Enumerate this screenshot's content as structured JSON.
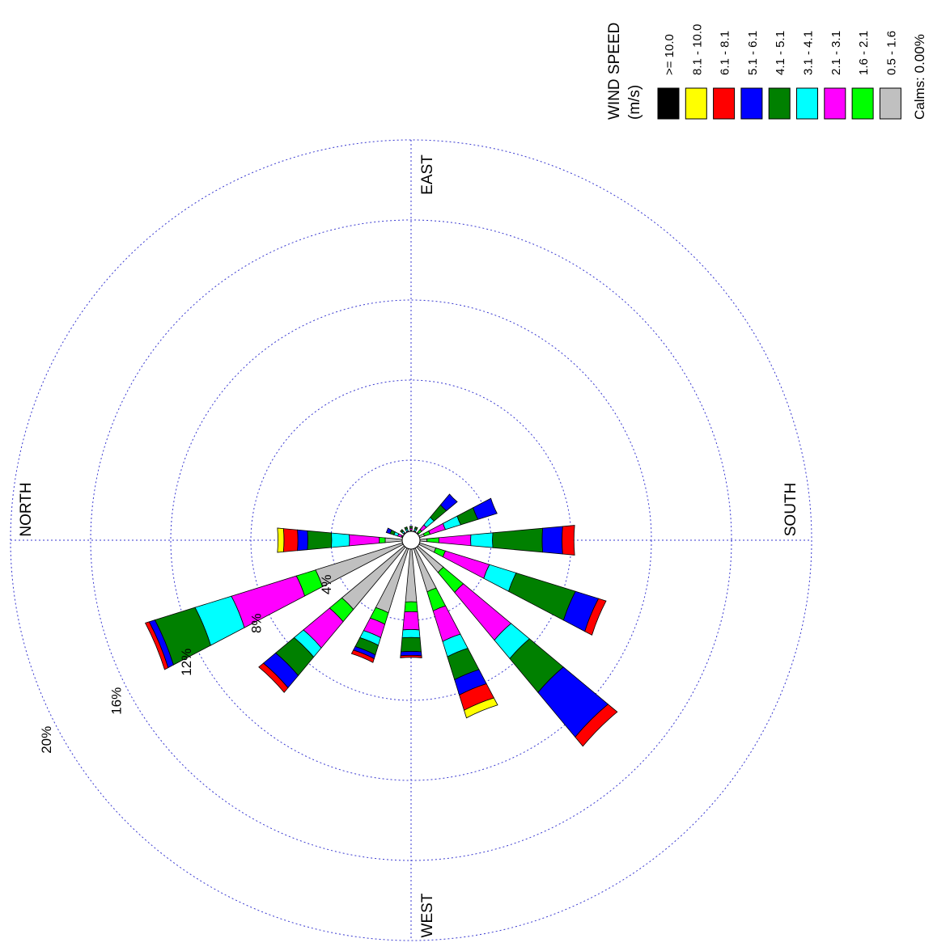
{
  "chart_data": {
    "type": "wind_rose",
    "direction_labels": {
      "north": "NORTH",
      "east": "EAST",
      "south": "SOUTH",
      "west": "WEST"
    },
    "ring_labels": [
      "4%",
      "8%",
      "12%",
      "16%",
      "20%"
    ],
    "ring_values": [
      4,
      8,
      12,
      16,
      20
    ],
    "units": "%",
    "legend": {
      "title": "WIND SPEED",
      "units": "(m/s)",
      "placement": "top-right",
      "bins": [
        {
          "label": ">= 10.0",
          "color": "#000000"
        },
        {
          "label": "8.1 - 10.0",
          "color": "#ffff00"
        },
        {
          "label": "6.1 - 8.1",
          "color": "#ff0000"
        },
        {
          "label": "5.1 - 6.1",
          "color": "#0000ff"
        },
        {
          "label": "4.1 - 5.1",
          "color": "#008000"
        },
        {
          "label": "3.1 - 4.1",
          "color": "#00ffff"
        },
        {
          "label": "2.1 - 3.1",
          "color": "#ff00ff"
        },
        {
          "label": "1.6 - 2.1",
          "color": "#00ff00"
        },
        {
          "label": "0.5 - 1.6",
          "color": "#c0c0c0"
        }
      ],
      "calms": "Calms: 0.00%"
    },
    "bin_order": [
      "0.5 - 1.6",
      "1.6 - 2.1",
      "2.1 - 3.1",
      "3.1 - 4.1",
      "4.1 - 5.1",
      "5.1 - 6.1",
      "6.1 - 8.1",
      "8.1 - 10.0",
      ">= 10.0"
    ],
    "directions": [
      {
        "deg": 0,
        "cum": [
          1.3,
          1.6,
          3.1,
          4.0,
          5.2,
          5.7,
          6.4,
          6.7,
          6.7
        ]
      },
      {
        "deg": 22.5,
        "cum": [
          0.4,
          0.5,
          0.7,
          0.9,
          1.1,
          1.3,
          1.3,
          1.3,
          1.3
        ]
      },
      {
        "deg": 45,
        "cum": [
          0.3,
          0.4,
          0.5,
          0.6,
          0.7,
          0.7,
          0.7,
          0.7,
          0.7
        ]
      },
      {
        "deg": 67.5,
        "cum": [
          0.3,
          0.4,
          0.5,
          0.6,
          0.7,
          0.7,
          0.7,
          0.7,
          0.7
        ]
      },
      {
        "deg": 90,
        "cum": [
          0.4,
          0.5,
          0.6,
          0.6,
          0.7,
          0.7,
          0.7,
          0.7,
          0.7
        ]
      },
      {
        "deg": 112.5,
        "cum": [
          0.3,
          0.4,
          0.5,
          0.6,
          0.7,
          0.7,
          0.7,
          0.7,
          0.7
        ]
      },
      {
        "deg": 135,
        "cum": [
          0.5,
          0.7,
          1.0,
          1.5,
          2.3,
          3.0,
          3.0,
          3.0,
          3.0
        ]
      },
      {
        "deg": 157.5,
        "cum": [
          0.7,
          1.0,
          1.8,
          2.6,
          3.5,
          4.5,
          4.5,
          4.5,
          4.5
        ]
      },
      {
        "deg": 180,
        "cum": [
          0.8,
          1.4,
          3.0,
          4.1,
          6.6,
          7.6,
          8.2,
          8.2,
          8.2
        ]
      },
      {
        "deg": 202.5,
        "cum": [
          1.3,
          1.8,
          4.1,
          5.5,
          8.6,
          9.8,
          10.2,
          10.2,
          10.2
        ]
      },
      {
        "deg": 225,
        "cum": [
          2.1,
          3.4,
          6.5,
          7.7,
          9.9,
          12.8,
          13.4,
          13.4,
          13.4
        ]
      },
      {
        "deg": 247.5,
        "cum": [
          2.7,
          3.7,
          5.3,
          6.1,
          7.3,
          8.1,
          8.9,
          9.3,
          9.3
        ]
      },
      {
        "deg": 270,
        "cum": [
          3.1,
          3.6,
          4.5,
          4.9,
          5.6,
          5.8,
          5.9,
          5.9,
          5.9
        ]
      },
      {
        "deg": 292.5,
        "cum": [
          3.8,
          4.4,
          5.1,
          5.5,
          6.0,
          6.2,
          6.4,
          6.4,
          6.4
        ]
      },
      {
        "deg": 315,
        "cum": [
          4.5,
          5.3,
          7.0,
          7.6,
          8.8,
          9.6,
          9.9,
          9.9,
          9.9
        ]
      },
      {
        "deg": 337.5,
        "cum": [
          5.0,
          6.0,
          9.4,
          11.3,
          13.4,
          13.7,
          13.9,
          13.9,
          13.9
        ]
      }
    ]
  }
}
